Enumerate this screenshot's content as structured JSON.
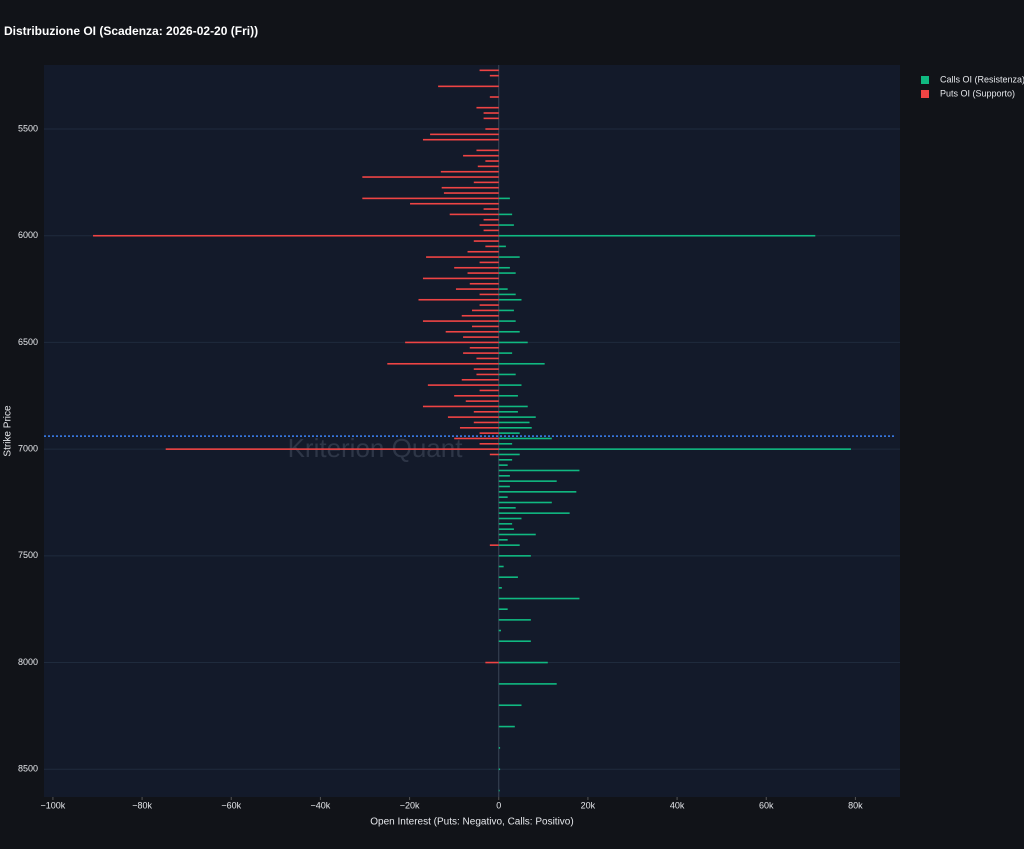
{
  "chart_data": {
    "type": "bar",
    "orientation": "horizontal",
    "title": "Distribuzione OI (Scadenza: 2026-02-20 (Fri))",
    "x_label": "Open Interest (Puts: Negativo, Calls: Positivo)",
    "y_label": "Strike Price",
    "watermark": "Kriterion Quant",
    "reference_line": 6939,
    "categories": [
      5225,
      5250,
      5275,
      5300,
      5325,
      5350,
      5375,
      5400,
      5425,
      5450,
      5475,
      5500,
      5525,
      5550,
      5575,
      5600,
      5625,
      5650,
      5675,
      5700,
      5725,
      5750,
      5775,
      5800,
      5825,
      5850,
      5875,
      5900,
      5925,
      5950,
      5975,
      6000,
      6025,
      6050,
      6075,
      6100,
      6125,
      6150,
      6175,
      6200,
      6225,
      6250,
      6275,
      6300,
      6325,
      6350,
      6375,
      6400,
      6425,
      6450,
      6475,
      6500,
      6525,
      6550,
      6575,
      6600,
      6625,
      6650,
      6675,
      6700,
      6725,
      6750,
      6775,
      6800,
      6825,
      6850,
      6875,
      6900,
      6925,
      6950,
      6975,
      7000,
      7025,
      7050,
      7075,
      7100,
      7125,
      7150,
      7175,
      7200,
      7225,
      7250,
      7275,
      7300,
      7325,
      7350,
      7375,
      7400,
      7425,
      7450,
      7475,
      7500,
      7550,
      7600,
      7650,
      7700,
      7750,
      7800,
      7850,
      7900,
      7950,
      8000,
      8100,
      8200,
      8300,
      8400,
      8500,
      8600
    ],
    "series": [
      {
        "name": "Calls OI (Resistenza)",
        "color": "#10b981",
        "values": [
          null,
          null,
          null,
          null,
          null,
          null,
          null,
          null,
          null,
          null,
          null,
          null,
          null,
          null,
          null,
          null,
          null,
          null,
          null,
          null,
          null,
          null,
          null,
          null,
          2500,
          null,
          null,
          3000,
          null,
          3400,
          null,
          71000,
          null,
          1600,
          null,
          4700,
          null,
          2500,
          3800,
          null,
          null,
          2000,
          3800,
          5100,
          null,
          3400,
          null,
          3800,
          null,
          4700,
          null,
          6500,
          null,
          3000,
          null,
          10300,
          null,
          3800,
          null,
          5100,
          null,
          4300,
          null,
          6500,
          4300,
          8300,
          6900,
          7400,
          4700,
          11900,
          3000,
          79000,
          4700,
          3000,
          2000,
          18100,
          2500,
          13000,
          2500,
          17400,
          2000,
          11900,
          3800,
          15900,
          5100,
          3000,
          3400,
          8300,
          2000,
          4700,
          null,
          7200,
          1100,
          4300,
          700,
          18100,
          2000,
          7200,
          500,
          7200,
          null,
          11000,
          13000,
          5100,
          3600,
          300,
          300,
          200
        ]
      },
      {
        "name": "Puts OI (Supporto)",
        "color": "#ef4444",
        "values": [
          -4300,
          -2000,
          null,
          -13600,
          null,
          -2000,
          null,
          -5000,
          -3400,
          -3400,
          null,
          -3000,
          -15400,
          -17000,
          null,
          -5000,
          -8000,
          -3000,
          -4700,
          -13000,
          -30600,
          -5600,
          -12800,
          -12300,
          -30600,
          -19900,
          -3400,
          -11000,
          -3400,
          -4300,
          -3400,
          -91000,
          -5600,
          -3000,
          -7000,
          -16300,
          -4300,
          -10000,
          -7000,
          -17000,
          -6500,
          -9600,
          -4300,
          -18000,
          -4300,
          -6000,
          -8300,
          -17000,
          -6000,
          -11900,
          -8000,
          -21000,
          -6500,
          -8000,
          -5000,
          -25000,
          -5600,
          -5000,
          -8300,
          -15900,
          -4300,
          -10000,
          -7400,
          -17000,
          -5600,
          -11400,
          -5600,
          -8700,
          -4300,
          -10000,
          -4300,
          -74700,
          -2000,
          null,
          null,
          null,
          null,
          null,
          null,
          null,
          null,
          null,
          null,
          null,
          null,
          null,
          null,
          null,
          null,
          -2000,
          null,
          null,
          null,
          null,
          null,
          null,
          null,
          null,
          null,
          null,
          null,
          -3000,
          null,
          null,
          null,
          null,
          null,
          null
        ]
      }
    ],
    "xlim": [
      -102000,
      90000
    ],
    "ylim": [
      5200,
      8630
    ],
    "y_reversed": true,
    "xticks": [
      {
        "value": -100000,
        "label": "−100k"
      },
      {
        "value": -80000,
        "label": "−80k"
      },
      {
        "value": -60000,
        "label": "−60k"
      },
      {
        "value": -40000,
        "label": "−40k"
      },
      {
        "value": -20000,
        "label": "−20k"
      },
      0,
      {
        "value": 20000,
        "label": "20k"
      },
      {
        "value": 40000,
        "label": "40k"
      },
      {
        "value": 60000,
        "label": "60k"
      },
      {
        "value": 80000,
        "label": "80k"
      }
    ],
    "yticks": [
      5500,
      6000,
      6500,
      7000,
      7500,
      8000,
      8500
    ],
    "grid": true,
    "legend": "right"
  }
}
